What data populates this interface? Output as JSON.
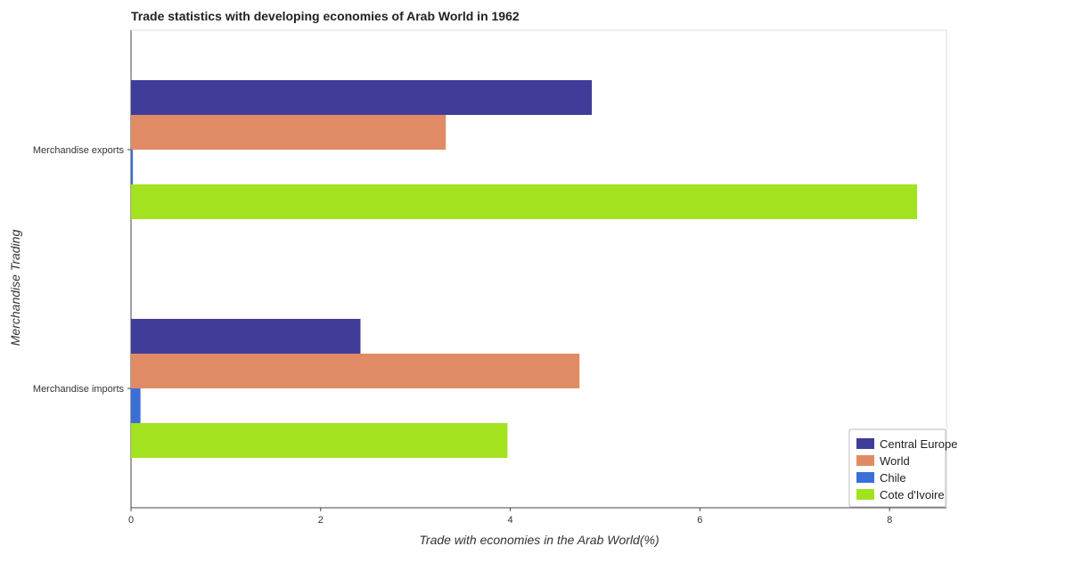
{
  "chart_data": {
    "type": "bar",
    "orientation": "horizontal",
    "title": "Trade statistics with developing economies of Arab World in 1962",
    "xlabel": "Trade with economies in the Arab World(%)",
    "ylabel": "Merchandise Trading",
    "categories": [
      "Merchandise exports",
      "Merchandise imports"
    ],
    "xlim": [
      0,
      8.6
    ],
    "xticks": [
      0,
      2,
      4,
      6,
      8
    ],
    "grid": false,
    "legend_position": "bottom-right",
    "series": [
      {
        "name": "Central Europe",
        "color": "#3f3d99",
        "values": [
          4.86,
          2.42
        ]
      },
      {
        "name": "World",
        "color": "#e08b65",
        "values": [
          3.32,
          4.73
        ]
      },
      {
        "name": "Chile",
        "color": "#3a6fd8",
        "values": [
          0.02,
          0.1
        ]
      },
      {
        "name": "Cote d'Ivoire",
        "color": "#a3e21e",
        "values": [
          8.29,
          3.97
        ]
      }
    ]
  }
}
